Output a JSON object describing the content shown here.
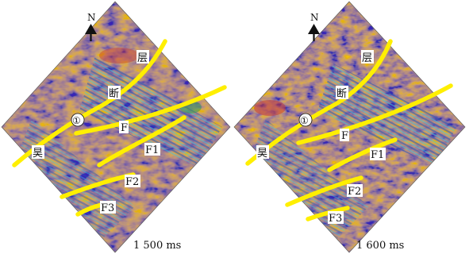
{
  "colors": {
    "background": "#ffffff",
    "seismic_base": "#e48a3c",
    "seismic_blue": "#2456b5",
    "seismic_cyan": "#45c8d5",
    "seismic_green": "#2f9a55",
    "seismic_red": "#c83a33",
    "fault_yellow": "#ffef00",
    "label_bg": "#ffffff",
    "text": "#111111"
  },
  "panels": [
    {
      "time_label": "1 500 ms",
      "north_label": "N",
      "labels": {
        "ceng": "层",
        "duan": "断",
        "circle1": "①",
        "hao": "昊",
        "F": "F",
        "F1": "F1",
        "F2": "F2",
        "F3": "F3"
      }
    },
    {
      "time_label": "1 600 ms",
      "north_label": "N",
      "labels": {
        "ceng": "层",
        "duan": "断",
        "circle1": "①",
        "hao": "昊",
        "F": "F",
        "F1": "F1",
        "F2": "F2",
        "F3": "F3"
      }
    }
  ]
}
